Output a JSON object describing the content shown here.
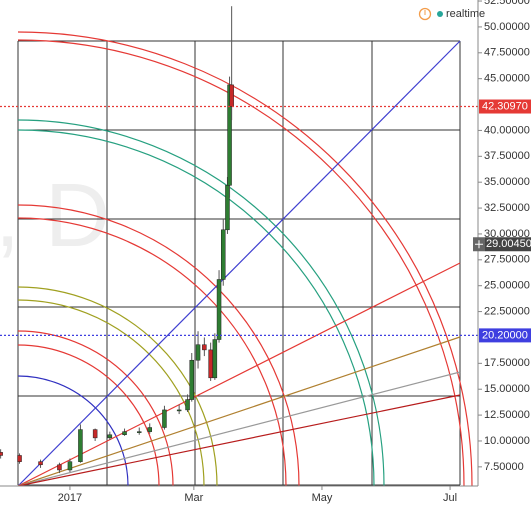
{
  "chart_data": {
    "type": "candlestick",
    "watermark": "D, D",
    "status": "realtime",
    "x": [
      -33,
      -24,
      -14,
      -5,
      0,
      5,
      12,
      19,
      26,
      33,
      38,
      45,
      52,
      56,
      58,
      61,
      64,
      67,
      69,
      71,
      73,
      75,
      76,
      77
    ],
    "open": [
      8.9,
      8.6,
      8.0,
      7.7,
      7.2,
      8.0,
      11.1,
      10.3,
      10.6,
      10.9,
      10.9,
      11.3,
      13.0,
      13.0,
      14.0,
      17.8,
      19.3,
      18.8,
      16.1,
      19.8,
      25.6,
      30.4,
      34.7,
      44.4
    ],
    "high": [
      9.2,
      8.8,
      8.2,
      7.9,
      8.3,
      11.6,
      11.2,
      10.9,
      11.2,
      11.3,
      11.7,
      13.4,
      13.5,
      14.5,
      18.5,
      20.6,
      20.0,
      19.5,
      20.4,
      26.5,
      31.5,
      35.5,
      45.2,
      52.0
    ],
    "low": [
      8.3,
      7.8,
      7.4,
      6.9,
      7.0,
      7.9,
      10.0,
      10.1,
      10.5,
      10.6,
      10.7,
      11.1,
      12.6,
      12.8,
      13.8,
      17.0,
      18.2,
      15.8,
      15.9,
      19.5,
      25.0,
      30.0,
      33.5,
      41.0
    ],
    "close": [
      8.6,
      8.0,
      7.7,
      7.2,
      8.0,
      11.1,
      10.3,
      10.6,
      10.9,
      10.9,
      11.3,
      13.0,
      13.0,
      14.0,
      17.8,
      19.3,
      18.8,
      16.1,
      19.8,
      25.6,
      30.4,
      34.7,
      44.4,
      42.3097
    ],
    "up_color": "#2e7d32",
    "down_color": "#c62828",
    "xlim": [
      -33.3,
      194.3
    ],
    "xticks": [
      {
        "value": 0,
        "label": "2017"
      },
      {
        "value": 59,
        "label": "Mar"
      },
      {
        "value": 120,
        "label": "May"
      },
      {
        "value": 181,
        "label": "Jul"
      }
    ],
    "ylim": [
      5.65,
      52.6
    ],
    "yticks": [
      {
        "value": 52.5,
        "label": "52.50000"
      },
      {
        "value": 50,
        "label": "50.00000"
      },
      {
        "value": 47.5,
        "label": "47.50000"
      },
      {
        "value": 45,
        "label": "45.00000"
      },
      {
        "value": 40,
        "label": "40.00000"
      },
      {
        "value": 37.5,
        "label": "37.50000"
      },
      {
        "value": 35,
        "label": "35.00000"
      },
      {
        "value": 32.5,
        "label": "32.50000"
      },
      {
        "value": 30,
        "label": "30.00000"
      },
      {
        "value": 27.5,
        "label": "27.50000"
      },
      {
        "value": 25,
        "label": "25.00000"
      },
      {
        "value": 22.5,
        "label": "22.50000"
      },
      {
        "value": 17.5,
        "label": "17.50000"
      },
      {
        "value": 15,
        "label": "15.00000"
      },
      {
        "value": 12.5,
        "label": "12.50000"
      },
      {
        "value": 10,
        "label": "10.00000"
      },
      {
        "value": 7.5,
        "label": "7.50000"
      }
    ],
    "price_lines": [
      {
        "value": 42.3097,
        "label": "42.30970",
        "color": "#e53935"
      },
      {
        "value": 20.2,
        "label": "20.20000",
        "color": "#3f3fe0"
      }
    ],
    "crosshair": {
      "value": 29.0045,
      "label": "29.00450"
    }
  }
}
